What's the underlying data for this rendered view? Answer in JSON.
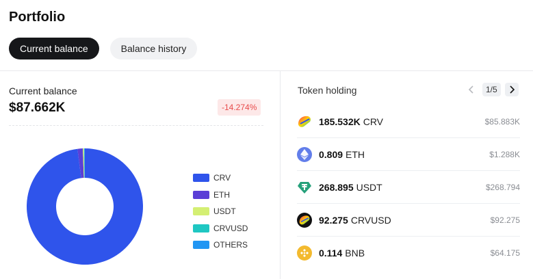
{
  "page_title": "Portfolio",
  "tabs": [
    {
      "label": "Current balance",
      "active": true
    },
    {
      "label": "Balance history",
      "active": false
    }
  ],
  "balance": {
    "label": "Current balance",
    "value": "$87.662K",
    "change": "-14.274%"
  },
  "chart_data": {
    "type": "pie",
    "categories": [
      "CRV",
      "ETH",
      "USDT",
      "CRVUSD",
      "OTHERS"
    ],
    "values": [
      85.883,
      1.288,
      0.269,
      0.092,
      0.13
    ],
    "colors": [
      "#2f54eb",
      "#5b3fd6",
      "#d4ef73",
      "#1fc7c2",
      "#2196f3"
    ],
    "legend_position": "right"
  },
  "holdings": {
    "title": "Token holding",
    "pager": "1/5",
    "items": [
      {
        "amount": "185.532K",
        "symbol": "CRV",
        "usd": "$85.883K",
        "icon": "crv-icon"
      },
      {
        "amount": "0.809",
        "symbol": "ETH",
        "usd": "$1.288K",
        "icon": "eth-icon"
      },
      {
        "amount": "268.895",
        "symbol": "USDT",
        "usd": "$268.794",
        "icon": "usdt-icon"
      },
      {
        "amount": "92.275",
        "symbol": "CRVUSD",
        "usd": "$92.275",
        "icon": "crvusd-icon"
      },
      {
        "amount": "0.114",
        "symbol": "BNB",
        "usd": "$64.175",
        "icon": "bnb-icon"
      }
    ]
  }
}
